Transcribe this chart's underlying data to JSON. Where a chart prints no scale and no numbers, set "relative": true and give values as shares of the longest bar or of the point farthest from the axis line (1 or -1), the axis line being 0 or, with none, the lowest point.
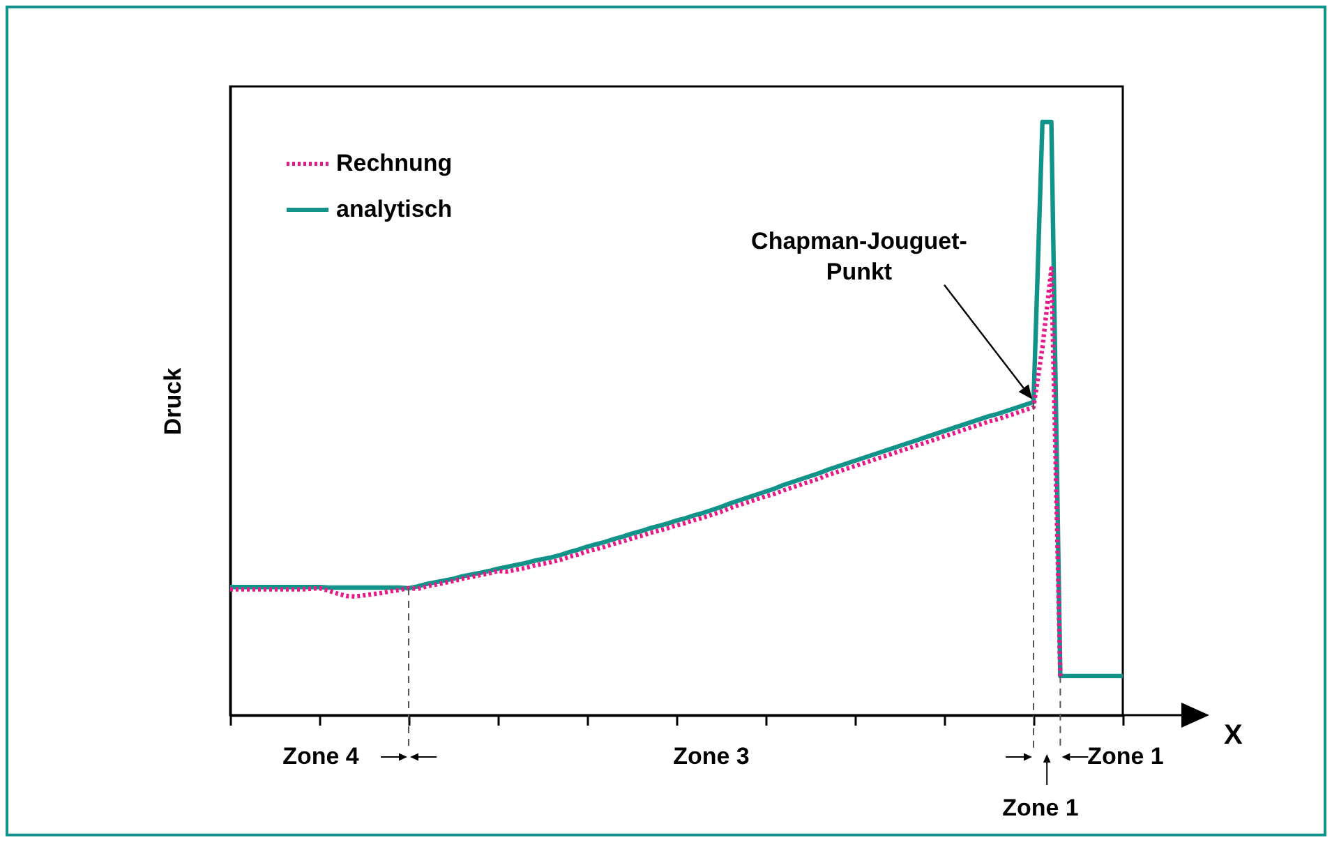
{
  "chart_data": {
    "type": "line",
    "relative": true,
    "xlabel": "X",
    "ylabel": "Druck",
    "legend": "top left",
    "categories": [
      null,
      null,
      null,
      null,
      null,
      null,
      null,
      null,
      null,
      null,
      null,
      null,
      null,
      null,
      null,
      null,
      null,
      null,
      null,
      null,
      null,
      null,
      null,
      null,
      null,
      null,
      null,
      null,
      null,
      null,
      null,
      null,
      null,
      null,
      null,
      null,
      null,
      null,
      null,
      null,
      null,
      null,
      null,
      null,
      null,
      null,
      null,
      null,
      null,
      null,
      null,
      null,
      null,
      null,
      null,
      null,
      null,
      null,
      null,
      null,
      null,
      null,
      null,
      null,
      null,
      null,
      null,
      null,
      null,
      null,
      null,
      null,
      null,
      null,
      null,
      null,
      null,
      null,
      null,
      null,
      null,
      null,
      null,
      null,
      null,
      null,
      null,
      null,
      null,
      null,
      null,
      null,
      null,
      null,
      null,
      null,
      null,
      null,
      null,
      null,
      null
    ],
    "series": [
      {
        "name": "Rechnung",
        "color": "#e8198b",
        "line_style": "dotted",
        "values": [
          0.212,
          0.212,
          0.212,
          0.212,
          0.212,
          0.212,
          0.212,
          0.212,
          0.212,
          0.213,
          0.214,
          0.21,
          0.205,
          0.201,
          0.2,
          0.202,
          0.204,
          0.206,
          0.209,
          0.211,
          0.214,
          0.213,
          0.217,
          0.22,
          0.223,
          0.226,
          0.23,
          0.233,
          0.236,
          0.239,
          0.243,
          0.242,
          0.245,
          0.248,
          0.252,
          0.255,
          0.258,
          0.262,
          0.267,
          0.271,
          0.276,
          0.28,
          0.284,
          0.289,
          0.293,
          0.298,
          0.302,
          0.307,
          0.311,
          0.315,
          0.32,
          0.324,
          0.329,
          0.333,
          0.338,
          0.343,
          0.349,
          0.354,
          0.359,
          0.364,
          0.369,
          0.373,
          0.379,
          0.384,
          0.389,
          0.394,
          0.399,
          0.405,
          0.41,
          0.415,
          0.42,
          0.425,
          0.43,
          0.435,
          0.44,
          0.445,
          0.45,
          0.455,
          0.46,
          0.465,
          0.47,
          0.475,
          0.48,
          0.485,
          0.49,
          0.495,
          0.499,
          0.504,
          0.509,
          0.514,
          0.519,
          0.62,
          0.753,
          0.066,
          null,
          null,
          null,
          null,
          null,
          null,
          null
        ]
      },
      {
        "name": "analytisch",
        "color": "#12938a",
        "line_style": "solid",
        "values": [
          0.216,
          0.216,
          0.216,
          0.216,
          0.216,
          0.216,
          0.216,
          0.216,
          0.216,
          0.216,
          0.216,
          0.215,
          0.215,
          0.215,
          0.215,
          0.215,
          0.215,
          0.215,
          0.215,
          0.215,
          0.214,
          0.217,
          0.221,
          0.224,
          0.227,
          0.23,
          0.234,
          0.237,
          0.24,
          0.243,
          0.247,
          0.25,
          0.253,
          0.256,
          0.26,
          0.263,
          0.266,
          0.27,
          0.275,
          0.279,
          0.284,
          0.288,
          0.292,
          0.297,
          0.301,
          0.306,
          0.31,
          0.315,
          0.319,
          0.323,
          0.328,
          0.332,
          0.337,
          0.341,
          0.346,
          0.351,
          0.357,
          0.362,
          0.367,
          0.372,
          0.377,
          0.382,
          0.388,
          0.393,
          0.398,
          0.403,
          0.408,
          0.414,
          0.419,
          0.424,
          0.429,
          0.434,
          0.439,
          0.444,
          0.449,
          0.454,
          0.459,
          0.464,
          0.469,
          0.474,
          0.479,
          0.484,
          0.489,
          0.494,
          0.499,
          0.504,
          0.508,
          0.513,
          0.518,
          0.523,
          0.528,
          1.0,
          1.0,
          0.066,
          0.066,
          0.066,
          0.066,
          0.066,
          0.066,
          0.066,
          0.066
        ]
      }
    ],
    "annotations": [
      "Chapman-Jouguet-Punkt",
      "Zone 4",
      "Zone 3",
      "Zone 1",
      "Zone 1"
    ]
  }
}
